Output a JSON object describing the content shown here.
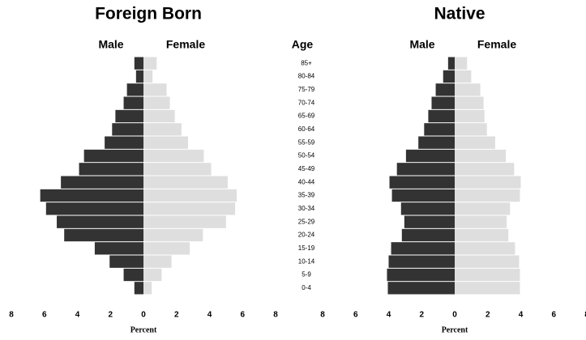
{
  "chart_data": [
    {
      "type": "population-pyramid",
      "title": "Foreign Born",
      "xlabel": "Percent",
      "xlim": [
        -8,
        8
      ],
      "xticks": [
        {
          "value": -8,
          "label": "8"
        },
        {
          "value": -6,
          "label": "6"
        },
        {
          "value": -4,
          "label": "4"
        },
        {
          "value": -2,
          "label": "2"
        },
        0,
        2,
        4,
        6,
        8
      ],
      "series": [
        {
          "name": "Male",
          "color": "#333333",
          "values": [
            0.55,
            0.45,
            1.0,
            1.2,
            1.7,
            1.9,
            2.35,
            3.6,
            3.9,
            5.0,
            6.25,
            5.9,
            5.25,
            4.8,
            2.95,
            2.05,
            1.2,
            0.55
          ]
        },
        {
          "name": "Female",
          "color": "#dedede",
          "values": [
            0.8,
            0.55,
            1.4,
            1.6,
            1.9,
            2.3,
            2.7,
            3.65,
            4.1,
            5.1,
            5.65,
            5.55,
            5.0,
            3.6,
            2.8,
            1.7,
            1.1,
            0.5
          ]
        }
      ]
    },
    {
      "type": "population-pyramid",
      "title": "Native",
      "xlabel": "Percent",
      "ylabel": "Age",
      "categories": [
        "85+",
        "80-84",
        "75-79",
        "70-74",
        "65-69",
        "60-64",
        "55-59",
        "50-54",
        "45-49",
        "40-44",
        "35-39",
        "30-34",
        "25-29",
        "20-24",
        "15-19",
        "10-14",
        "5-9",
        "0-4"
      ],
      "xlim": [
        -8,
        8
      ],
      "xticks": [
        {
          "value": -8,
          "label": "8"
        },
        {
          "value": -6,
          "label": "6"
        },
        {
          "value": -4,
          "label": "4"
        },
        {
          "value": -2,
          "label": "2"
        },
        0,
        2,
        4,
        6,
        8
      ],
      "series": [
        {
          "name": "Male",
          "color": "#333333",
          "values": [
            0.4,
            0.7,
            1.15,
            1.4,
            1.6,
            1.85,
            2.2,
            2.95,
            3.5,
            3.95,
            3.8,
            3.25,
            3.05,
            3.2,
            3.85,
            4.0,
            4.1,
            4.05
          ]
        },
        {
          "name": "Female",
          "color": "#dedede",
          "values": [
            0.75,
            1.0,
            1.55,
            1.75,
            1.8,
            1.95,
            2.45,
            3.1,
            3.6,
            4.0,
            3.95,
            3.35,
            3.15,
            3.25,
            3.65,
            3.9,
            3.95,
            3.95
          ]
        }
      ]
    }
  ]
}
